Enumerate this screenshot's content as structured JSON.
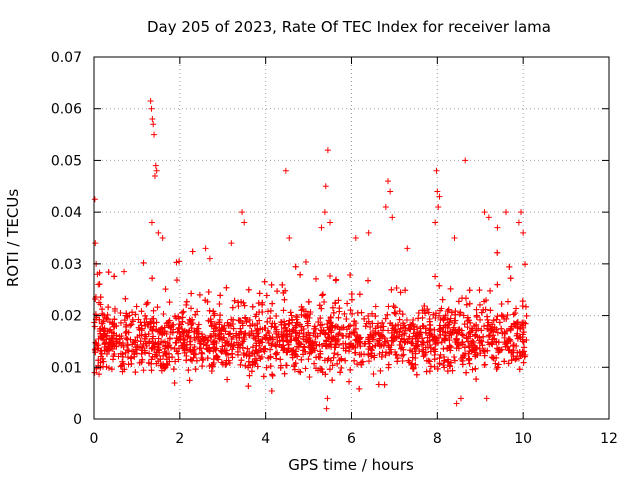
{
  "chart_data": {
    "type": "scatter",
    "title": "Day 205 of 2023, Rate Of TEC Index for receiver lama",
    "xlabel": "GPS time / hours",
    "ylabel": "ROTI / TECUs",
    "xlim": [
      0,
      12
    ],
    "ylim": [
      0,
      0.07
    ],
    "x_ticks": [
      "0",
      "2",
      "4",
      "6",
      "8",
      "10",
      "12"
    ],
    "y_ticks": [
      "0",
      "0.01",
      "0.02",
      "0.03",
      "0.04",
      "0.05",
      "0.06",
      "0.07"
    ],
    "grid": true,
    "marker": "+",
    "color": "#ff0000",
    "density_note": "dense band of points mostly between 0.005 and 0.025 TECU/s from 0 to ~10.1 h",
    "series": [
      {
        "points": [
          [
            0.02,
            0.0425
          ],
          [
            0.03,
            0.034
          ],
          [
            0.05,
            0.03
          ],
          [
            0.08,
            0.028
          ],
          [
            0.1,
            0.026
          ],
          [
            1.32,
            0.0615
          ],
          [
            1.34,
            0.06
          ],
          [
            1.36,
            0.058
          ],
          [
            1.38,
            0.057
          ],
          [
            1.4,
            0.055
          ],
          [
            1.44,
            0.049
          ],
          [
            1.46,
            0.048
          ],
          [
            1.42,
            0.047
          ],
          [
            1.35,
            0.038
          ],
          [
            1.5,
            0.036
          ],
          [
            4.47,
            0.048
          ],
          [
            5.45,
            0.052
          ],
          [
            5.4,
            0.045
          ],
          [
            5.38,
            0.04
          ],
          [
            5.5,
            0.038
          ],
          [
            5.3,
            0.037
          ],
          [
            6.85,
            0.046
          ],
          [
            6.9,
            0.044
          ],
          [
            6.8,
            0.041
          ],
          [
            6.95,
            0.039
          ],
          [
            7.98,
            0.048
          ],
          [
            8.0,
            0.044
          ],
          [
            8.05,
            0.043
          ],
          [
            8.02,
            0.041
          ],
          [
            7.95,
            0.038
          ],
          [
            8.65,
            0.05
          ],
          [
            9.6,
            0.04
          ],
          [
            9.95,
            0.04
          ],
          [
            9.9,
            0.038
          ],
          [
            10.0,
            0.036
          ],
          [
            3.45,
            0.04
          ],
          [
            3.5,
            0.038
          ],
          [
            2.6,
            0.033
          ],
          [
            2.7,
            0.031
          ],
          [
            1.6,
            0.035
          ],
          [
            0.7,
            0.0285
          ],
          [
            3.2,
            0.034
          ],
          [
            4.55,
            0.035
          ],
          [
            6.1,
            0.035
          ],
          [
            6.4,
            0.036
          ],
          [
            7.3,
            0.033
          ],
          [
            8.4,
            0.035
          ],
          [
            9.1,
            0.04
          ],
          [
            9.2,
            0.039
          ],
          [
            9.4,
            0.037
          ],
          [
            5.42,
            0.002
          ],
          [
            5.44,
            0.004
          ],
          [
            8.45,
            0.003
          ],
          [
            8.55,
            0.004
          ],
          [
            9.15,
            0.004
          ]
        ]
      }
    ]
  }
}
